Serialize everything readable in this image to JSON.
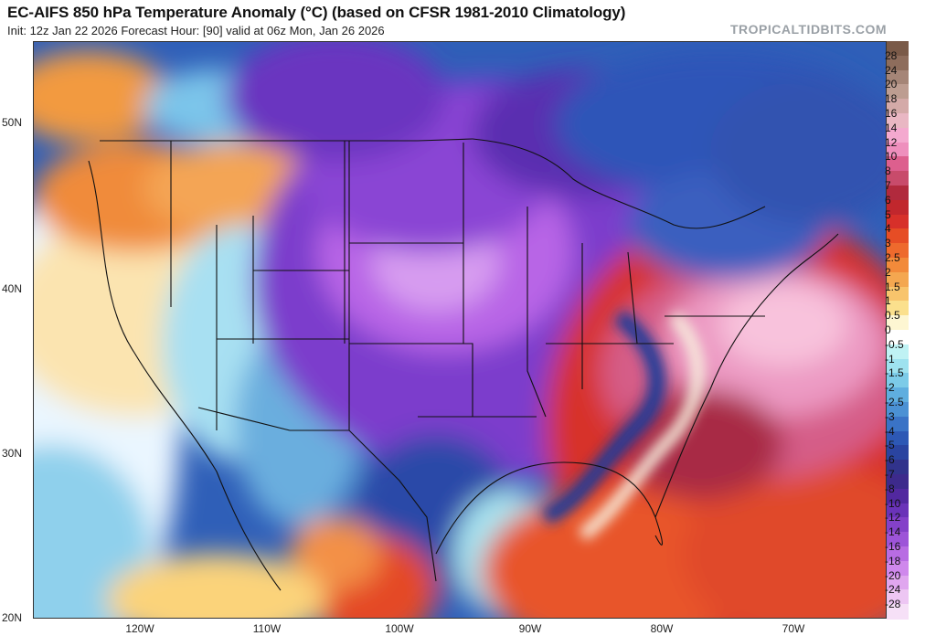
{
  "header": {
    "title": "EC-AIFS 850 hPa Temperature Anomaly (°C) (based on CFSR 1981-2010 Climatology)",
    "subtitle": "Init: 12z Jan 22 2026   Forecast Hour: [90]   valid at 06z Mon, Jan 26 2026",
    "brand": "TROPICALTIDBITS.COM"
  },
  "axes": {
    "lat_labels": [
      "50N",
      "40N",
      "30N",
      "20N"
    ],
    "lon_labels": [
      "120W",
      "110W",
      "100W",
      "90W",
      "80W",
      "70W"
    ]
  },
  "colorbar": {
    "labels": [
      "28",
      "24",
      "20",
      "18",
      "16",
      "14",
      "12",
      "10",
      "8",
      "7",
      "6",
      "5",
      "4",
      "3",
      "2.5",
      "2",
      "1.5",
      "1",
      "0.5",
      "0",
      "-0.5",
      "-1",
      "-1.5",
      "-2",
      "-2.5",
      "-3",
      "-4",
      "-5",
      "-6",
      "-7",
      "-8",
      "-10",
      "-12",
      "-14",
      "-16",
      "-18",
      "-20",
      "-24",
      "-28"
    ],
    "colors": [
      "#7a5a48",
      "#8e6d5c",
      "#a58577",
      "#bd9d91",
      "#d4aaa8",
      "#e9b7c3",
      "#f4a9cf",
      "#ee8fbd",
      "#dd5f8e",
      "#c84b6b",
      "#b12a3d",
      "#c1272d",
      "#d7302a",
      "#e64d25",
      "#ee6a2d",
      "#f28a3a",
      "#f4a750",
      "#f8c46c",
      "#fbe08d",
      "#fdf6d2",
      "#ffffff",
      "#bff2f4",
      "#9ee2ef",
      "#7ccbe8",
      "#5faedf",
      "#4b91d4",
      "#3a73c6",
      "#2d58b5",
      "#2a44a0",
      "#31338c",
      "#3d2a8c",
      "#5228a0",
      "#6a33b8",
      "#8441c9",
      "#9d54d8",
      "#b86ce3",
      "#cf88ec",
      "#e0a6ef",
      "#edc6f3",
      "#f6e0f7"
    ]
  },
  "map": {
    "description_colors": {
      "cold_core": "#c07ae8",
      "cold": "#8a46d2",
      "cool": "#3552b0",
      "warm": "#d7302a",
      "hot_core": "#f0a0c8"
    }
  }
}
